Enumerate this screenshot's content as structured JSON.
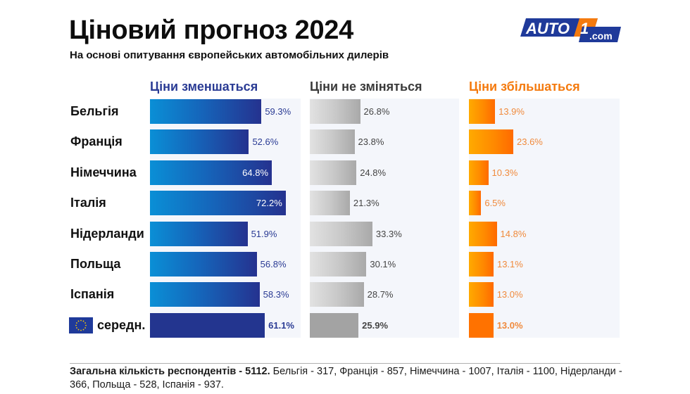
{
  "header": {
    "title": "Ціновий прогноз 2024",
    "subtitle": "На основі опитування європейських автомобільних дилерів"
  },
  "logo": {
    "text_main": "AUTO",
    "text_digit": "1",
    "text_domain": ".com",
    "colors": {
      "blue": "#1f3a9a",
      "orange": "#f47a0e"
    }
  },
  "chart_data": {
    "type": "bar",
    "orientation": "horizontal",
    "title": "Ціновий прогноз 2024",
    "subtitle": "На основі опитування європейських автомобільних дилерів",
    "categories": [
      "Бельгія",
      "Франція",
      "Німеччина",
      "Італія",
      "Нідерланди",
      "Польща",
      "Іспанія",
      "середн."
    ],
    "series": [
      {
        "name": "Ціни зменшаться",
        "color": "#2a3b94",
        "values": [
          59.3,
          52.6,
          64.8,
          72.2,
          51.9,
          56.8,
          58.3,
          61.1
        ]
      },
      {
        "name": "Ціни не зміняться",
        "color": "#555555",
        "values": [
          26.8,
          23.8,
          24.8,
          21.3,
          33.3,
          30.1,
          28.7,
          25.9
        ]
      },
      {
        "name": "Ціни збільшаться",
        "color": "#f47a0e",
        "values": [
          13.9,
          23.6,
          10.3,
          6.5,
          14.8,
          13.1,
          13.0,
          13.0
        ]
      }
    ],
    "value_format": "{v}%",
    "xlim": [
      0,
      80
    ],
    "grid": false,
    "legend": "column-headers"
  },
  "footnote": {
    "bold": "Загальна кількість респондентів - 5112.",
    "text": " Бельгія - 317, Франція - 857, Німеччина - 1007, Італія - 1100, Нідерланди - 366, Польща - 528, Іспанія - 937."
  }
}
